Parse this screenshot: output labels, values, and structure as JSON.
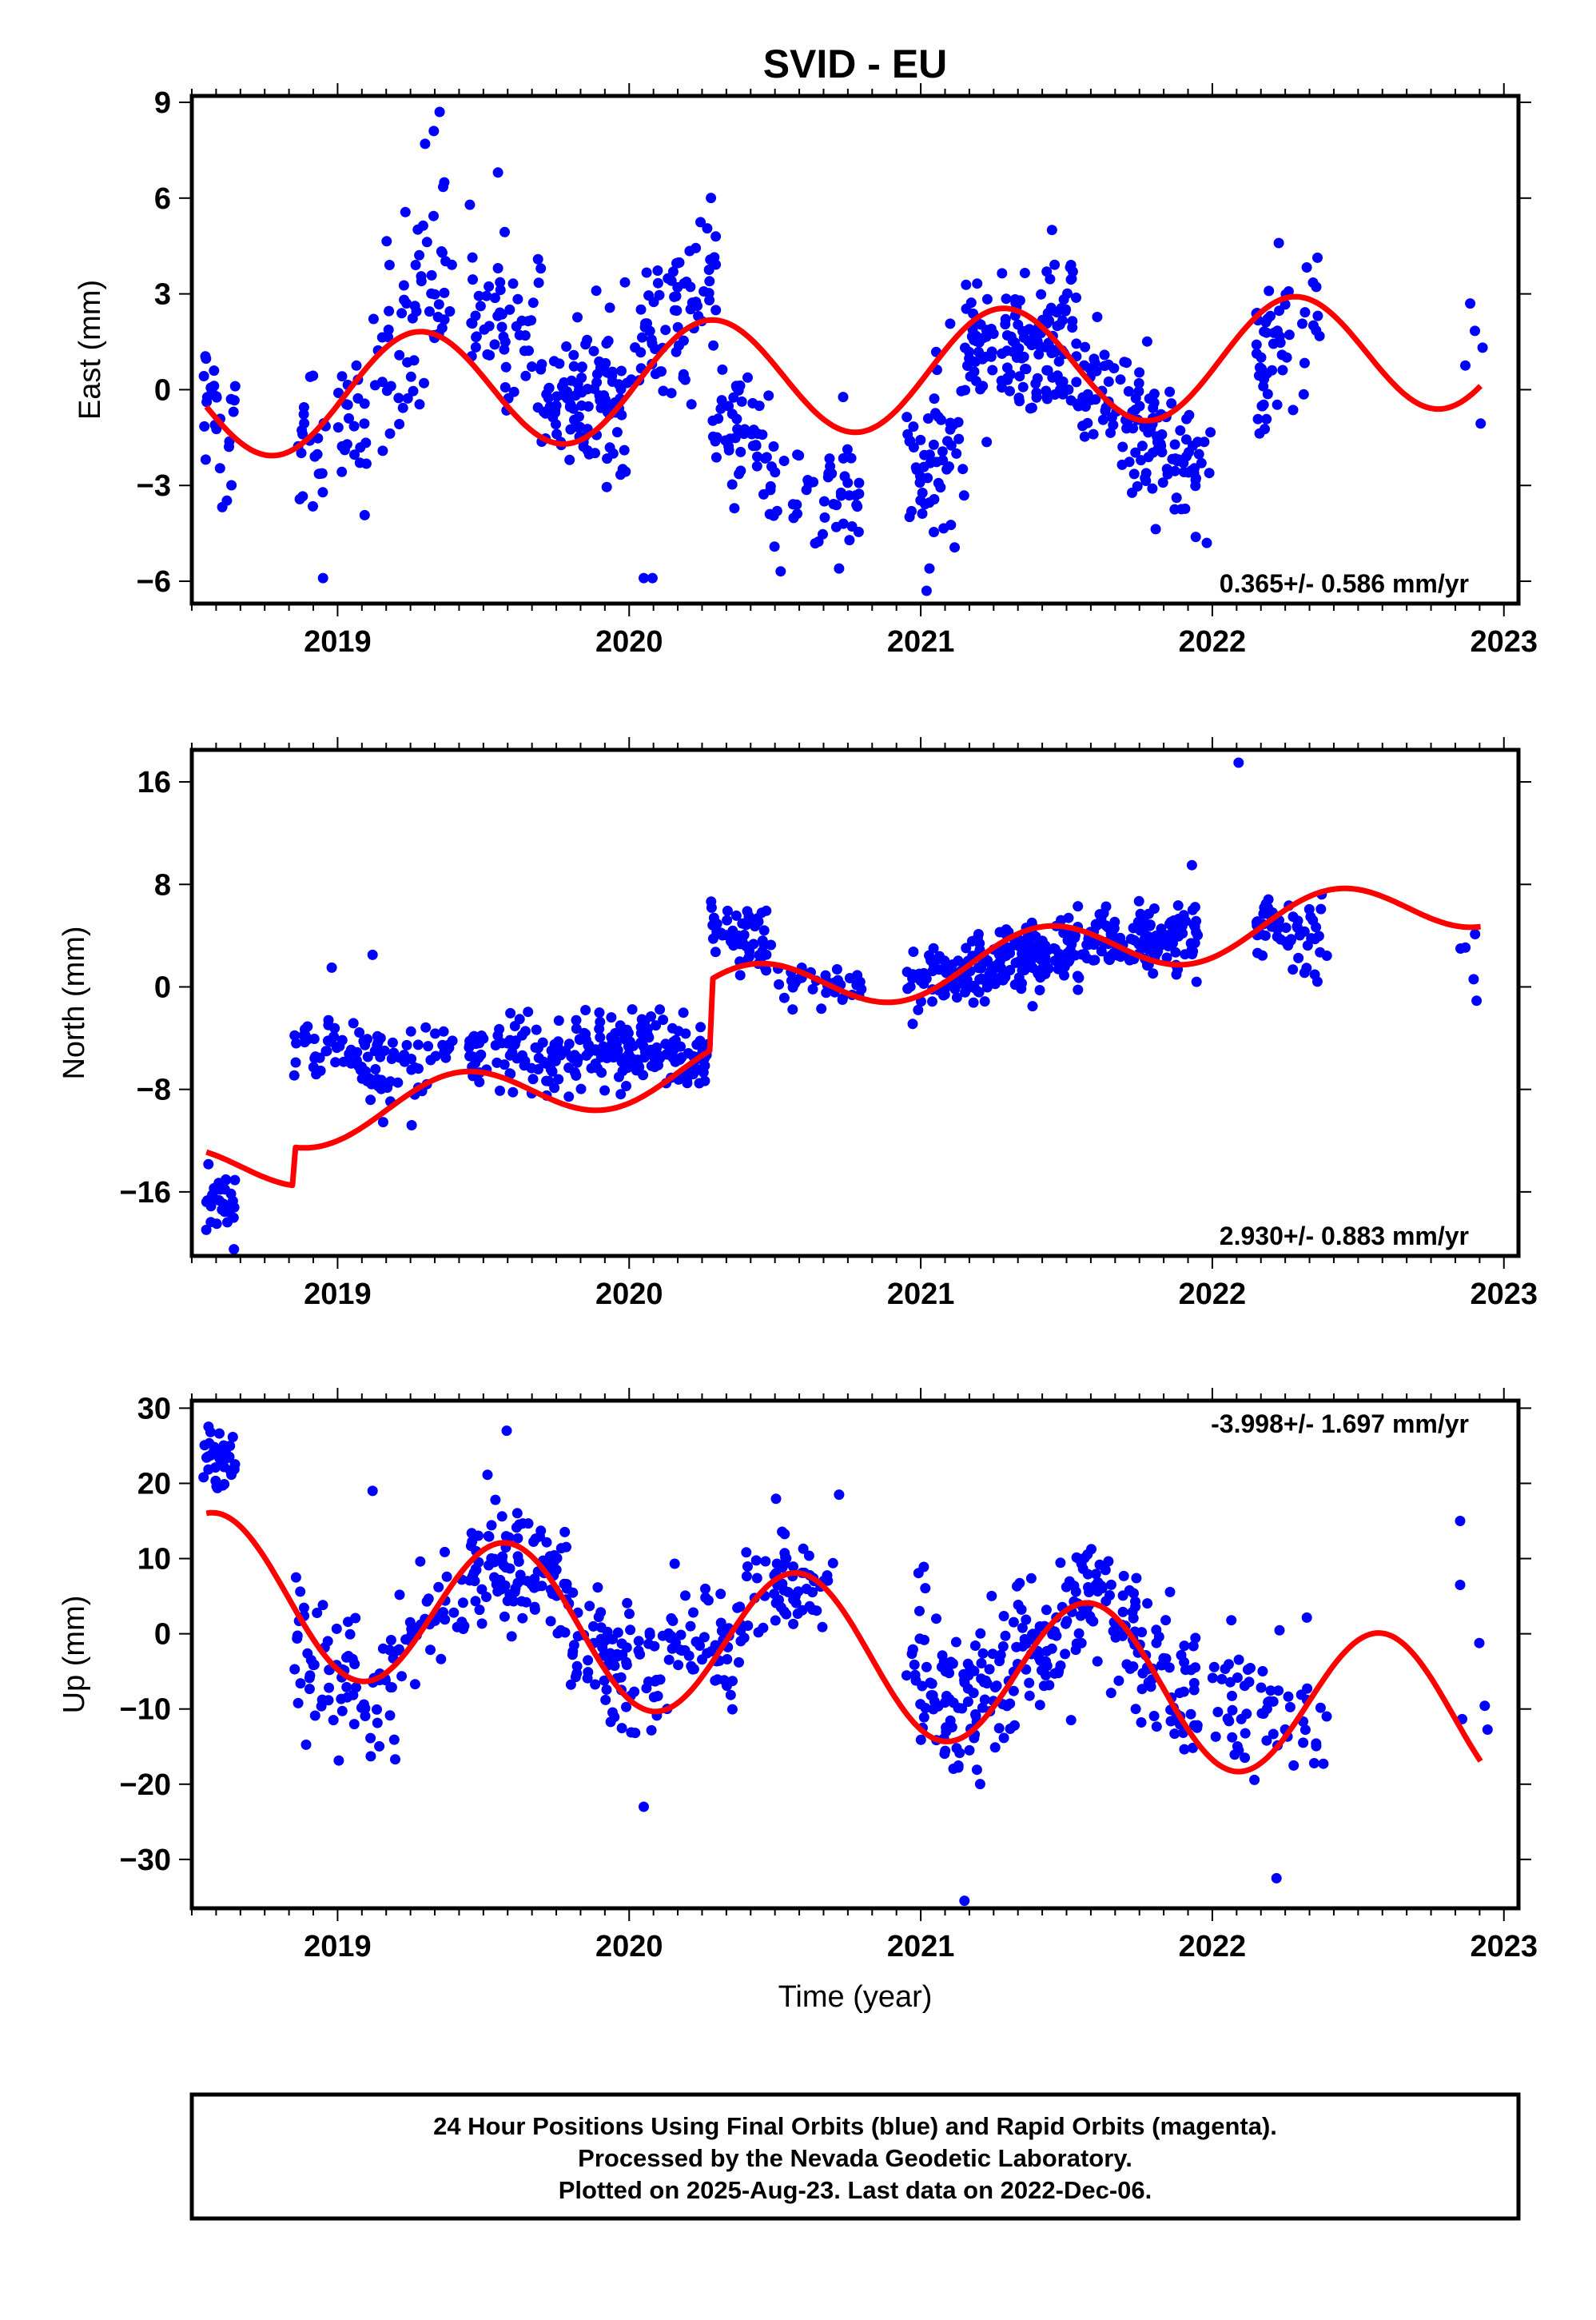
{
  "chart_data": {
    "title": "SVID - EU",
    "type": "scatter",
    "x_label": "Time (year)",
    "x_range": [
      2018.5,
      2023.05
    ],
    "x_ticks": [
      2019,
      2020,
      2021,
      2022,
      2023
    ],
    "panels": [
      {
        "id": "east",
        "ylabel": "East (mm)",
        "ylim": [
          -6.7,
          9.2
        ],
        "yticks": [
          -6,
          -3,
          0,
          3,
          6,
          9
        ],
        "rate_label": "0.365+/- 0.586 mm/yr",
        "rate_position": "bottom-right",
        "model": {
          "offset": -0.3,
          "trend": 0.365,
          "amp": 1.85,
          "phase_peak": 0.28,
          "offsets": []
        },
        "clusters": [
          {
            "x": [
              2018.54,
              2018.65
            ],
            "y_at": [
              0.0,
              -2.0
            ],
            "spread": 1.2,
            "n": 26
          },
          {
            "x": [
              2018.85,
              2019.1
            ],
            "y_at": [
              -1.6,
              -0.8
            ],
            "spread": 1.1,
            "n": 45
          },
          {
            "x": [
              2019.1,
              2019.4
            ],
            "y_at": [
              1.0,
              3.5
            ],
            "spread": 1.6,
            "n": 60
          },
          {
            "x": [
              2019.45,
              2019.7
            ],
            "y_at": [
              3.0,
              1.0
            ],
            "spread": 1.2,
            "n": 55
          },
          {
            "x": [
              2019.7,
              2020.0
            ],
            "y_at": [
              -0.5,
              -0.5
            ],
            "spread": 1.3,
            "n": 110
          },
          {
            "x": [
              2020.0,
              2020.3
            ],
            "y_at": [
              0.8,
              3.5
            ],
            "spread": 1.2,
            "n": 75
          },
          {
            "x": [
              2020.28,
              2020.5
            ],
            "y_at": [
              -1.0,
              -2.0
            ],
            "spread": 1.0,
            "n": 55
          },
          {
            "x": [
              2020.5,
              2020.8
            ],
            "y_at": [
              -3.5,
              -3.5
            ],
            "spread": 1.1,
            "n": 45
          },
          {
            "x": [
              2020.95,
              2021.15
            ],
            "y_at": [
              -2.5,
              -2.0
            ],
            "spread": 1.3,
            "n": 55
          },
          {
            "x": [
              2021.15,
              2021.55
            ],
            "y_at": [
              1.5,
              1.5
            ],
            "spread": 1.1,
            "n": 150
          },
          {
            "x": [
              2021.55,
              2022.0
            ],
            "y_at": [
              0.0,
              -2.8
            ],
            "spread": 1.1,
            "n": 130
          },
          {
            "x": [
              2022.15,
              2022.38
            ],
            "y_at": [
              0.5,
              2.5
            ],
            "spread": 1.1,
            "n": 55
          },
          {
            "x": [
              2022.85,
              2022.95
            ],
            "y_at": [
              -0.5,
              0.5
            ],
            "spread": 1.2,
            "n": 5
          }
        ],
        "outliers": [
          [
            2019.35,
            8.7
          ],
          [
            2019.33,
            8.1
          ],
          [
            2019.3,
            7.7
          ],
          [
            2018.95,
            -5.9
          ],
          [
            2020.05,
            -5.9
          ],
          [
            2020.08,
            -5.9
          ],
          [
            2021.02,
            -6.3
          ],
          [
            2020.72,
            -5.6
          ],
          [
            2021.03,
            -5.6
          ],
          [
            2021.45,
            5.0
          ],
          [
            2019.55,
            6.8
          ]
        ]
      },
      {
        "id": "north",
        "ylabel": "North (mm)",
        "ylim": [
          -21,
          18.5
        ],
        "yticks": [
          -16,
          -8,
          0,
          8,
          16
        ],
        "rate_label": "2.930+/- 0.883 mm/yr",
        "rate_position": "bottom-right",
        "model": {
          "offset": -14.4,
          "trend": 2.93,
          "amp": 2.2,
          "phase_peak": 0.42,
          "offsets": [
            [
              2018.85,
              3.0
            ],
            [
              2020.28,
              5.5
            ]
          ]
        },
        "clusters": [
          {
            "x": [
              2018.54,
              2018.65
            ],
            "y_at": [
              -17.0,
              -17.0
            ],
            "spread": 1.6,
            "n": 32
          },
          {
            "x": [
              2018.85,
              2019.15
            ],
            "y_at": [
              -4.0,
              -5.5
            ],
            "spread": 1.5,
            "n": 55
          },
          {
            "x": [
              2019.1,
              2019.4
            ],
            "y_at": [
              -7.0,
              -5.5
            ],
            "spread": 1.4,
            "n": 45
          },
          {
            "x": [
              2019.45,
              2019.75
            ],
            "y_at": [
              -5.0,
              -5.5
            ],
            "spread": 1.3,
            "n": 70
          },
          {
            "x": [
              2019.75,
              2020.05
            ],
            "y_at": [
              -5.5,
              -4.5
            ],
            "spread": 1.4,
            "n": 95
          },
          {
            "x": [
              2020.05,
              2020.28
            ],
            "y_at": [
              -4.5,
              -5.5
            ],
            "spread": 1.4,
            "n": 70
          },
          {
            "x": [
              2020.28,
              2020.5
            ],
            "y_at": [
              5.0,
              3.5
            ],
            "spread": 1.3,
            "n": 55
          },
          {
            "x": [
              2020.5,
              2020.8
            ],
            "y_at": [
              0.0,
              0.5
            ],
            "spread": 1.2,
            "n": 35
          },
          {
            "x": [
              2020.95,
              2021.2
            ],
            "y_at": [
              0.5,
              1.0
            ],
            "spread": 1.3,
            "n": 70
          },
          {
            "x": [
              2021.2,
              2021.6
            ],
            "y_at": [
              2.0,
              3.0
            ],
            "spread": 1.3,
            "n": 150
          },
          {
            "x": [
              2021.6,
              2021.95
            ],
            "y_at": [
              3.5,
              4.0
            ],
            "spread": 1.3,
            "n": 120
          },
          {
            "x": [
              2022.15,
              2022.4
            ],
            "y_at": [
              5.0,
              3.0
            ],
            "spread": 1.5,
            "n": 55
          },
          {
            "x": [
              2022.85,
              2022.95
            ],
            "y_at": [
              3.0,
              3.0
            ],
            "spread": 1.5,
            "n": 5
          }
        ],
        "outliers": [
          [
            2022.09,
            17.5
          ],
          [
            2021.93,
            9.5
          ],
          [
            2019.12,
            2.5
          ],
          [
            2018.98,
            1.5
          ]
        ]
      },
      {
        "id": "up",
        "ylabel": "Up (mm)",
        "ylim": [
          -36.5,
          31
        ],
        "yticks": [
          -30,
          -20,
          -10,
          0,
          10,
          20,
          30
        ],
        "rate_label": "-3.998+/- 1.697 mm/yr",
        "rate_position": "top-right",
        "model": {
          "offset": 6.0,
          "trend": -3.998,
          "amp": 10.2,
          "phase_peak": 0.58,
          "offsets": []
        },
        "clusters": [
          {
            "x": [
              2018.54,
              2018.65
            ],
            "y_at": [
              24.0,
              22.0
            ],
            "spread": 2.5,
            "n": 35
          },
          {
            "x": [
              2018.85,
              2019.2
            ],
            "y_at": [
              -4.0,
              -8.0
            ],
            "spread": 4.5,
            "n": 75
          },
          {
            "x": [
              2019.2,
              2019.45
            ],
            "y_at": [
              -2.0,
              5.0
            ],
            "spread": 4.0,
            "n": 35
          },
          {
            "x": [
              2019.45,
              2019.8
            ],
            "y_at": [
              10.0,
              6.0
            ],
            "spread": 4.0,
            "n": 110
          },
          {
            "x": [
              2019.8,
              2020.1
            ],
            "y_at": [
              0.0,
              -7.0
            ],
            "spread": 4.5,
            "n": 75
          },
          {
            "x": [
              2020.1,
              2020.4
            ],
            "y_at": [
              -2.0,
              0.0
            ],
            "spread": 4.5,
            "n": 60
          },
          {
            "x": [
              2020.4,
              2020.7
            ],
            "y_at": [
              8.0,
              5.0
            ],
            "spread": 4.0,
            "n": 60
          },
          {
            "x": [
              2020.95,
              2021.2
            ],
            "y_at": [
              -4.0,
              -12.0
            ],
            "spread": 5.5,
            "n": 75
          },
          {
            "x": [
              2021.2,
              2021.55
            ],
            "y_at": [
              -8.0,
              3.0
            ],
            "spread": 4.5,
            "n": 100
          },
          {
            "x": [
              2021.55,
              2021.95
            ],
            "y_at": [
              6.0,
              -10.0
            ],
            "spread": 4.5,
            "n": 110
          },
          {
            "x": [
              2022.0,
              2022.4
            ],
            "y_at": [
              -10.0,
              -10.0
            ],
            "spread": 5.0,
            "n": 60
          },
          {
            "x": [
              2022.85,
              2022.95
            ],
            "y_at": [
              -3.0,
              -6.0
            ],
            "spread": 5.0,
            "n": 4
          }
        ],
        "outliers": [
          [
            2021.15,
            -35.5
          ],
          [
            2022.22,
            -32.5
          ],
          [
            2020.05,
            -23.0
          ],
          [
            2019.58,
            27.0
          ],
          [
            2022.85,
            15.0
          ],
          [
            2022.85,
            6.5
          ],
          [
            2020.72,
            18.5
          ],
          [
            2019.12,
            19.0
          ]
        ]
      }
    ],
    "colors": {
      "final_orbits": "#0000ff",
      "model_curve": "#ff0000",
      "axes": "#000000"
    }
  },
  "caption": {
    "line1": "24 Hour Positions Using Final Orbits (blue) and Rapid Orbits (magenta).",
    "line2": "Processed by the Nevada Geodetic Laboratory.",
    "line3": "Plotted on 2025-Aug-23. Last data on 2022-Dec-06."
  }
}
